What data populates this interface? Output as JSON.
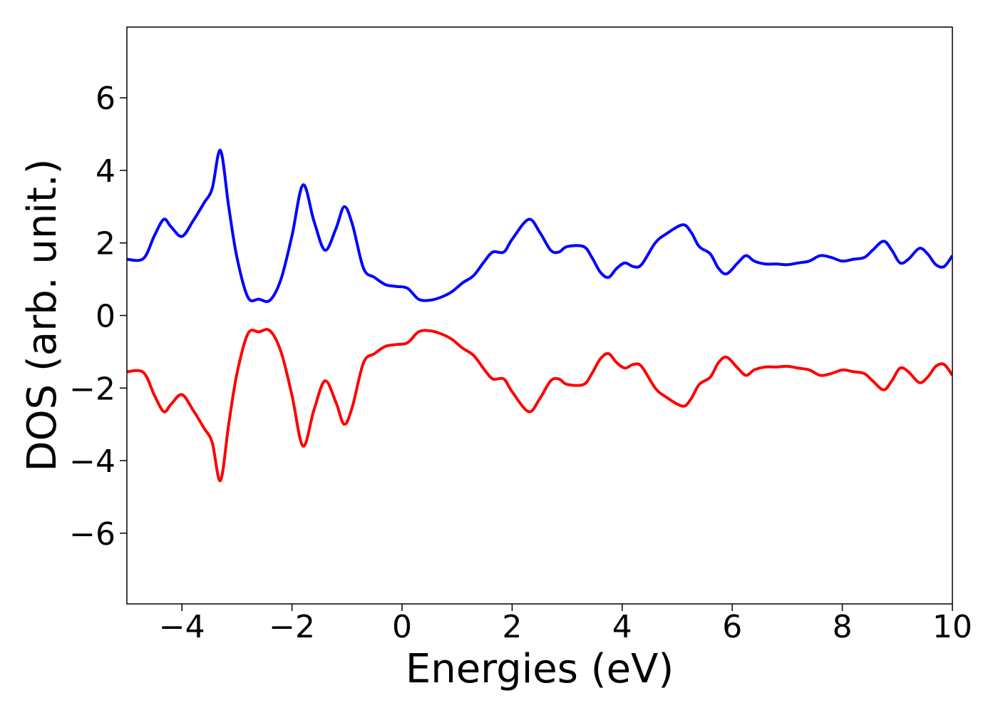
{
  "chart_data": {
    "type": "line",
    "xlabel": "Energies (eV)",
    "ylabel": "DOS (arb. unit.)",
    "x": [
      -5,
      -4.7,
      -4.5,
      -4.33,
      -4.2,
      -4.0,
      -3.8,
      -3.6,
      -3.45,
      -3.3,
      -3.15,
      -3.0,
      -2.8,
      -2.6,
      -2.4,
      -2.2,
      -2.0,
      -1.8,
      -1.6,
      -1.4,
      -1.2,
      -1.05,
      -0.9,
      -0.7,
      -0.5,
      -0.3,
      -0.1,
      0.1,
      0.3,
      0.5,
      0.7,
      0.9,
      1.1,
      1.3,
      1.5,
      1.65,
      1.85,
      2.0,
      2.3,
      2.5,
      2.7,
      2.85,
      3.0,
      3.3,
      3.45,
      3.6,
      3.75,
      3.9,
      4.05,
      4.2,
      4.35,
      4.6,
      4.8,
      5.1,
      5.25,
      5.4,
      5.6,
      5.75,
      5.9,
      6.1,
      6.25,
      6.4,
      6.6,
      6.8,
      7.0,
      7.2,
      7.4,
      7.6,
      7.8,
      8.0,
      8.2,
      8.4,
      8.55,
      8.75,
      8.9,
      9.05,
      9.2,
      9.4,
      9.55,
      9.7,
      9.85,
      10
    ],
    "series": [
      {
        "color": "#0000ff",
        "values": [
          1.55,
          1.57,
          2.2,
          2.65,
          2.45,
          2.18,
          2.6,
          3.1,
          3.5,
          4.55,
          3.0,
          1.6,
          0.5,
          0.45,
          0.42,
          1.0,
          2.2,
          3.6,
          2.6,
          1.8,
          2.4,
          3.0,
          2.5,
          1.3,
          1.05,
          0.85,
          0.8,
          0.75,
          0.45,
          0.42,
          0.5,
          0.65,
          0.9,
          1.1,
          1.5,
          1.75,
          1.75,
          2.1,
          2.65,
          2.3,
          1.8,
          1.75,
          1.9,
          1.9,
          1.6,
          1.2,
          1.05,
          1.3,
          1.45,
          1.35,
          1.4,
          2.0,
          2.25,
          2.5,
          2.3,
          1.9,
          1.7,
          1.3,
          1.15,
          1.45,
          1.65,
          1.5,
          1.42,
          1.42,
          1.4,
          1.45,
          1.5,
          1.65,
          1.6,
          1.5,
          1.55,
          1.6,
          1.8,
          2.05,
          1.8,
          1.45,
          1.55,
          1.85,
          1.7,
          1.4,
          1.35,
          1.65
        ]
      },
      {
        "color": "#ff0000",
        "values": [
          -1.55,
          -1.57,
          -2.2,
          -2.65,
          -2.45,
          -2.18,
          -2.6,
          -3.1,
          -3.5,
          -4.55,
          -3.0,
          -1.6,
          -0.5,
          -0.45,
          -0.42,
          -1.0,
          -2.2,
          -3.6,
          -2.6,
          -1.8,
          -2.4,
          -3.0,
          -2.5,
          -1.3,
          -1.05,
          -0.85,
          -0.8,
          -0.75,
          -0.45,
          -0.42,
          -0.5,
          -0.65,
          -0.9,
          -1.1,
          -1.5,
          -1.75,
          -1.75,
          -2.1,
          -2.65,
          -2.3,
          -1.8,
          -1.75,
          -1.9,
          -1.9,
          -1.6,
          -1.2,
          -1.05,
          -1.3,
          -1.45,
          -1.35,
          -1.4,
          -2.0,
          -2.25,
          -2.5,
          -2.3,
          -1.9,
          -1.7,
          -1.3,
          -1.15,
          -1.45,
          -1.65,
          -1.5,
          -1.42,
          -1.42,
          -1.4,
          -1.45,
          -1.5,
          -1.65,
          -1.6,
          -1.5,
          -1.55,
          -1.6,
          -1.8,
          -2.05,
          -1.8,
          -1.45,
          -1.55,
          -1.85,
          -1.7,
          -1.4,
          -1.35,
          -1.65
        ]
      }
    ],
    "xlim": [
      -5,
      10
    ],
    "xticks": [
      {
        "value": -4,
        "label": "−4"
      },
      {
        "value": -2,
        "label": "−2"
      },
      0,
      2,
      4,
      6,
      8,
      10
    ],
    "ylim": [
      -7.95,
      7.95
    ],
    "yticks": [
      {
        "value": -6,
        "label": "−6"
      },
      {
        "value": -4,
        "label": "−4"
      },
      {
        "value": -2,
        "label": "−2"
      },
      0,
      2,
      4,
      6
    ]
  }
}
